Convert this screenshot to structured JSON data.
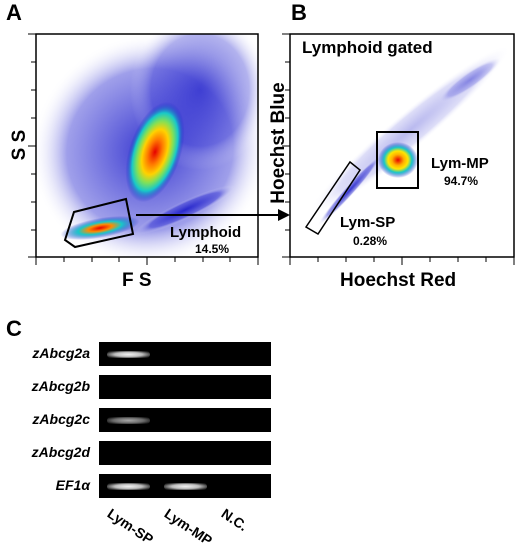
{
  "panel_a": {
    "letter": "A",
    "x_label": "F S",
    "y_label": "S S",
    "gate": {
      "name": "Lymphoid",
      "percent": "14.5%"
    }
  },
  "panel_b": {
    "letter": "B",
    "title": "Lymphoid gated",
    "x_label": "Hoechst Red",
    "y_label": "Hoechst Blue",
    "gate_mp": {
      "name": "Lym-MP",
      "percent": "94.7%"
    },
    "gate_sp": {
      "name": "Lym-SP",
      "percent": "0.28%"
    }
  },
  "panel_c": {
    "letter": "C",
    "genes": [
      "zAbcg2a",
      "zAbcg2b",
      "zAbcg2c",
      "zAbcg2d",
      "EF1α"
    ],
    "lanes": [
      "Lym-SP",
      "Lym-MP",
      "N.C."
    ],
    "band_presence": [
      [
        1,
        0,
        0
      ],
      [
        0,
        0,
        0
      ],
      [
        0.6,
        0,
        0
      ],
      [
        0,
        0,
        0
      ],
      [
        1,
        1,
        0
      ]
    ]
  },
  "colors": {
    "density_low": "#1414c8",
    "density_mid": "#18c8c8",
    "density_high": "#ffd200",
    "density_peak": "#e60000",
    "gel_background": "#000000",
    "band": "#e8e8e8"
  }
}
